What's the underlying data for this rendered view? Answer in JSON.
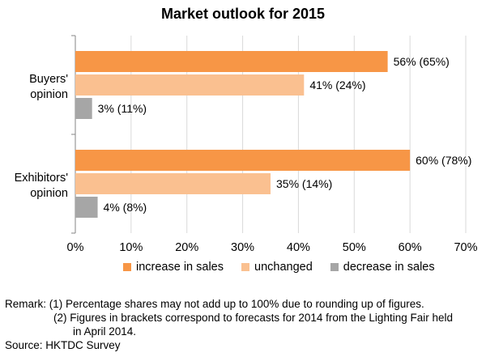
{
  "chart_data": {
    "type": "bar",
    "orientation": "horizontal",
    "title": "Market outlook for 2015",
    "categories": [
      "Buyers' opinion",
      "Exhibitors' opinion"
    ],
    "category_lines": [
      [
        "Buyers'",
        "opinion"
      ],
      [
        "Exhibitors'",
        "opinion"
      ]
    ],
    "series": [
      {
        "name": "increase in sales",
        "color": "#f79646",
        "values": [
          56,
          60
        ],
        "labels": [
          "56% (65%)",
          "60% (78%)"
        ]
      },
      {
        "name": "unchanged",
        "color": "#fac090",
        "values": [
          41,
          35
        ],
        "labels": [
          "41% (24%)",
          "35% (14%)"
        ]
      },
      {
        "name": "decrease in sales",
        "color": "#a6a6a6",
        "values": [
          3,
          4
        ],
        "labels": [
          "3% (11%)",
          "4% (8%)"
        ]
      }
    ],
    "xlim": [
      0,
      70
    ],
    "xticks": [
      0,
      10,
      20,
      30,
      40,
      50,
      60,
      70
    ],
    "xtick_labels": [
      "0%",
      "10%",
      "20%",
      "30%",
      "40%",
      "50%",
      "60%",
      "70%"
    ],
    "grid": true,
    "legend_position": "bottom",
    "xlabel": "",
    "ylabel": ""
  },
  "notes": {
    "line1": "Remark: (1) Percentage shares may not add up to 100% due to rounding up of figures.",
    "line2": "(2) Figures in brackets correspond to forecasts for 2014 from the Lighting Fair held",
    "line3": "in April 2014.",
    "source": "Source: HKTDC Survey"
  }
}
